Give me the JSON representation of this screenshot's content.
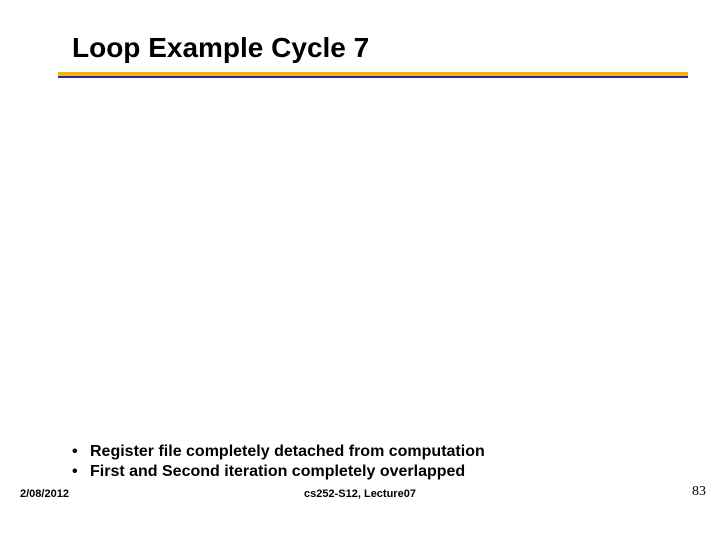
{
  "title": "Loop Example Cycle 7",
  "underline": {
    "gold_color": "#f2b60f",
    "blue_color": "#2c2ca0"
  },
  "bullets": [
    "Register file completely detached from computation",
    "First and Second iteration completely overlapped"
  ],
  "footer": {
    "date": "2/08/2012",
    "center": "cs252-S12, Lecture07",
    "page": "83"
  }
}
